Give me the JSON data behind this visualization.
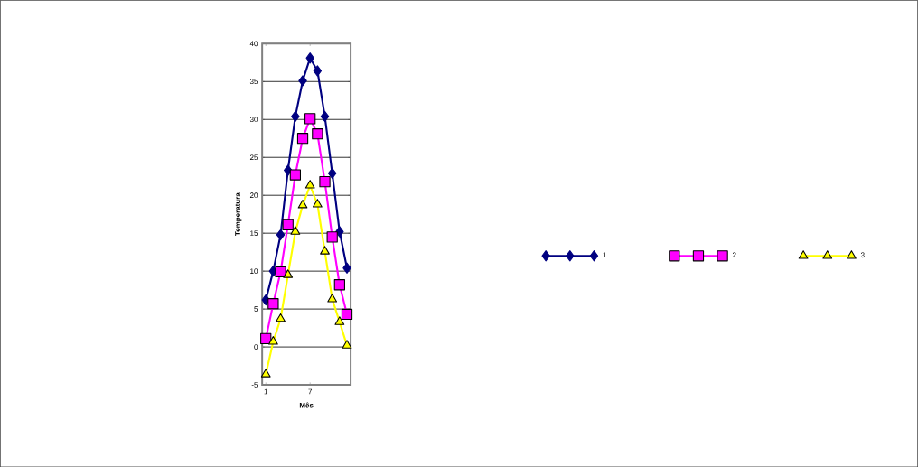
{
  "chart_data": {
    "type": "line",
    "xlabel": "Mês",
    "ylabel": "Temperatura",
    "categories": [
      "1",
      null,
      null,
      null,
      null,
      null,
      "7",
      null,
      null,
      null,
      null,
      null
    ],
    "series": [
      {
        "name": "1",
        "color": "#000080",
        "marker": "diamond",
        "values": [
          6.2,
          10,
          14.8,
          23.3,
          30.4,
          35.1,
          38.1,
          36.4,
          30.4,
          22.9,
          15.2,
          10.4
        ]
      },
      {
        "name": "2",
        "color": "#ff00ff",
        "marker": "square",
        "values": [
          1.1,
          5.7,
          9.9,
          16.1,
          22.7,
          27.5,
          30.1,
          28.1,
          21.8,
          14.5,
          8.2,
          4.3
        ]
      },
      {
        "name": "3",
        "color": "#ffff00",
        "marker": "triangle",
        "values": [
          -3.6,
          0.7,
          3.7,
          9.5,
          15.2,
          18.7,
          21.3,
          18.8,
          12.6,
          6.3,
          3.3,
          0.2
        ]
      }
    ],
    "ylim": [
      -5,
      40
    ],
    "yticks": [
      -5,
      0,
      5,
      10,
      15,
      20,
      25,
      30,
      35,
      40
    ],
    "grid": "y",
    "legend": "right"
  }
}
